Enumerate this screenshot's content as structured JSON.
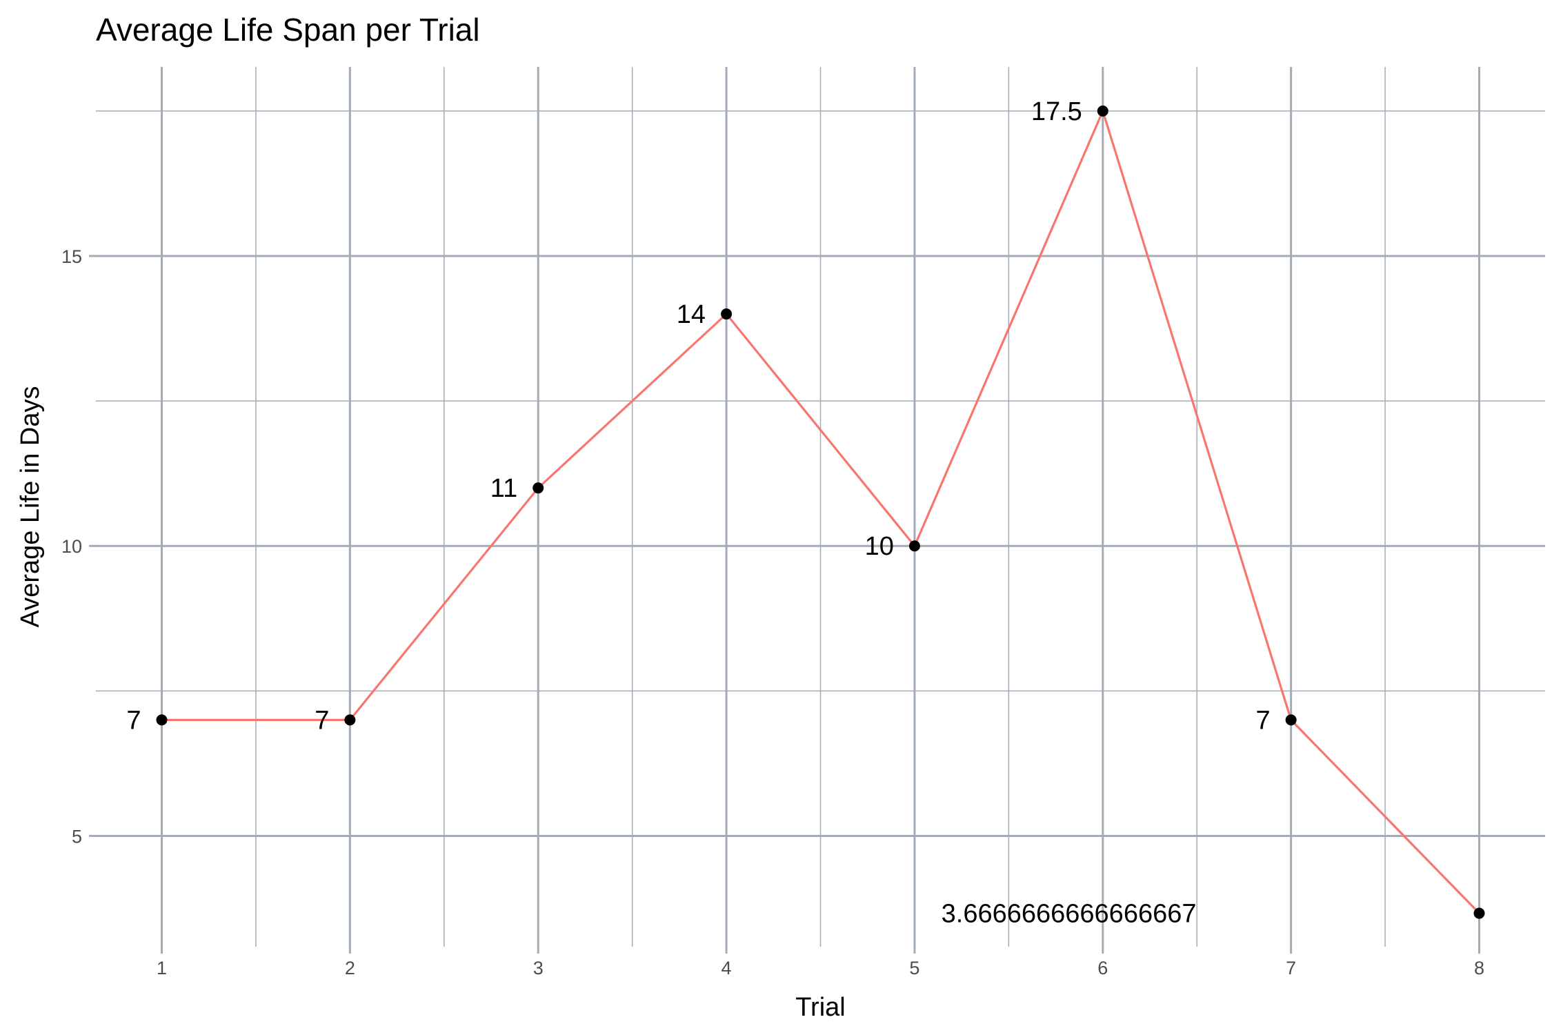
{
  "chart_data": {
    "type": "line",
    "title": "Average Life Span per Trial",
    "xlabel": "Trial",
    "ylabel": "Average Life in Days",
    "x": [
      1,
      2,
      3,
      4,
      5,
      6,
      7,
      8
    ],
    "x_tick_labels": [
      "1",
      "2",
      "3",
      "4",
      "5",
      "6",
      "7",
      "8"
    ],
    "y_ticks": [
      5,
      10,
      15
    ],
    "y_tick_labels": [
      "5",
      "10",
      "15"
    ],
    "series": [
      {
        "values": [
          7,
          7,
          11,
          14,
          10,
          17.5,
          7,
          3.6666666666666665
        ]
      }
    ],
    "data_labels": [
      "7",
      "7",
      "11",
      "14",
      "10",
      "17.5",
      "7",
      "3.6666666666666667"
    ],
    "xlim": [
      0.65,
      8.35
    ],
    "ylim": [
      3.09,
      18.26
    ],
    "grid": true,
    "line_color": "#F8766D",
    "point_color": "#000000",
    "grid_color": "#A3ACB6"
  }
}
